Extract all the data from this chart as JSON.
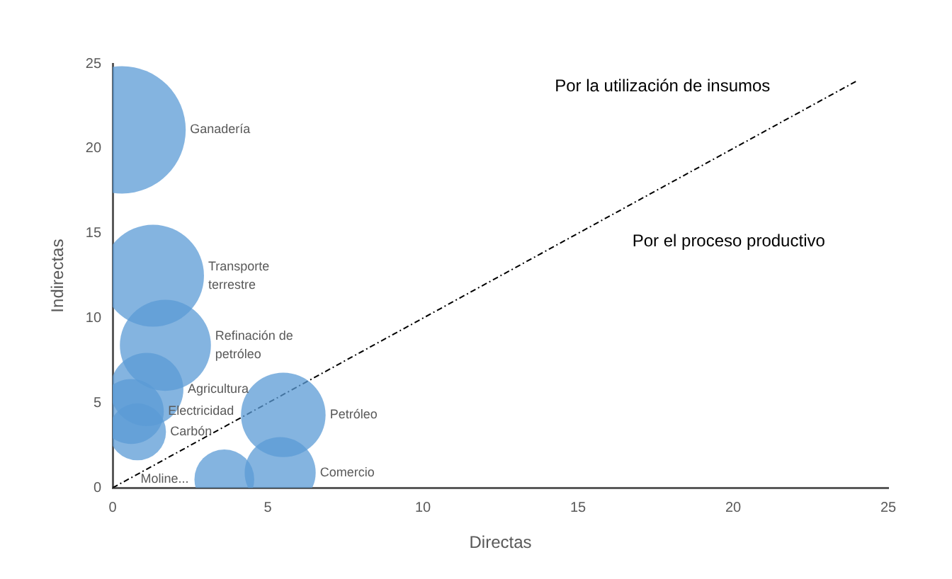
{
  "chart_data": {
    "type": "bubble",
    "xlabel": "Directas",
    "ylabel": "Indirectas",
    "xlim": [
      0,
      25
    ],
    "xticks": [
      0,
      5,
      10,
      15,
      20,
      25
    ],
    "ylim": [
      0,
      25
    ],
    "yticks": [
      0,
      5,
      10,
      15,
      20,
      25
    ],
    "grid": false,
    "legend": false,
    "annotations": [
      "Por la utilización de insumos",
      "Por el proceso productivo"
    ],
    "series": [
      {
        "name": "Ganadería",
        "color": "#5b9bd5",
        "x": [
          0.3
        ],
        "values": [
          21.1
        ],
        "sizes": [
          1
        ]
      },
      {
        "name": "Transporte terrestre",
        "color": "#5b9bd5",
        "x": [
          1.3
        ],
        "values": [
          12.5
        ],
        "sizes": [
          0.64
        ]
      },
      {
        "name": "Refinación de petróleo",
        "color": "#5b9bd5",
        "x": [
          1.7
        ],
        "values": [
          8.4
        ],
        "sizes": [
          0.51
        ]
      },
      {
        "name": "Agricultura",
        "color": "#5b9bd5",
        "x": [
          1.1
        ],
        "values": [
          5.8
        ],
        "sizes": [
          0.33
        ]
      },
      {
        "name": "Electricidad",
        "color": "#5b9bd5",
        "x": [
          0.6
        ],
        "values": [
          4.5
        ],
        "sizes": [
          0.26
        ]
      },
      {
        "name": "Carbón",
        "color": "#5b9bd5",
        "x": [
          0.8
        ],
        "values": [
          3.3
        ],
        "sizes": [
          0.2
        ]
      },
      {
        "name": "Petróleo",
        "color": "#5b9bd5",
        "x": [
          5.5
        ],
        "values": [
          4.3
        ],
        "sizes": [
          0.44
        ]
      },
      {
        "name": "Comercio",
        "color": "#5b9bd5",
        "x": [
          5.4
        ],
        "values": [
          0.9
        ],
        "sizes": [
          0.31
        ]
      },
      {
        "name": "Moline...",
        "color": "#5b9bd5",
        "x": [
          3.6
        ],
        "values": [
          0.5
        ],
        "sizes": [
          0.22
        ]
      },
      {
        "type": "line",
        "color": "#000000",
        "line_style": "dotted",
        "marker": "none",
        "x": [
          0,
          24
        ],
        "values": [
          0,
          24
        ]
      }
    ]
  }
}
